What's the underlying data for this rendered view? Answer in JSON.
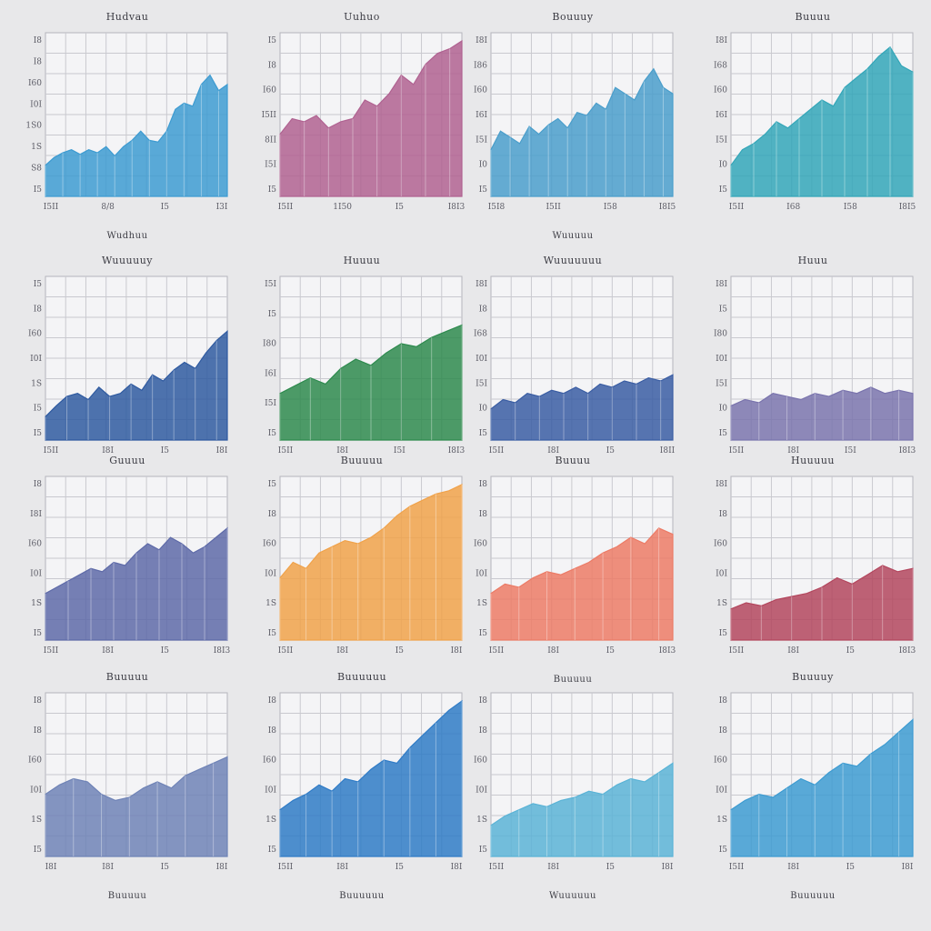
{
  "page": {
    "background": "#e8e8ea",
    "grid_color": "#c9c9cf",
    "frame_color": "#b5b5bc"
  },
  "chart_data": [
    {
      "type": "area",
      "title": "Hudvau",
      "footer": "Wudhuu",
      "color": "#3d9bd1",
      "yticks": [
        "I8",
        "I8",
        "I60",
        "I0I",
        "1S0",
        "1S",
        "S8",
        "I5"
      ],
      "xticks": [
        "I5II",
        "8/8",
        "I5",
        "I3I"
      ],
      "values": [
        0.2,
        0.25,
        0.28,
        0.3,
        0.27,
        0.3,
        0.28,
        0.32,
        0.26,
        0.32,
        0.36,
        0.42,
        0.36,
        0.35,
        0.42,
        0.56,
        0.6,
        0.58,
        0.72,
        0.78,
        0.68,
        0.72
      ]
    },
    {
      "type": "area",
      "title": "Uuhuo",
      "footer": "",
      "color": "#b06291",
      "yticks": [
        "I5",
        "I8",
        "I60",
        "I5II",
        "8II",
        "I5I",
        "I5"
      ],
      "xticks": [
        "I5II",
        "1I50",
        "I5",
        "I8I3"
      ],
      "values": [
        0.4,
        0.5,
        0.48,
        0.52,
        0.44,
        0.48,
        0.5,
        0.62,
        0.58,
        0.66,
        0.78,
        0.72,
        0.85,
        0.92,
        0.95,
        1.0
      ]
    },
    {
      "type": "area",
      "title": "Bouuuy",
      "footer": "Wuuuuu",
      "color": "#4a9ecb",
      "yticks": [
        "I8I",
        "I86",
        "I60",
        "I6I",
        "I5I",
        "I0",
        "I5"
      ],
      "xticks": [
        "I5I8",
        "I5II",
        "I58",
        "I8I5"
      ],
      "values": [
        0.3,
        0.42,
        0.38,
        0.34,
        0.45,
        0.4,
        0.46,
        0.5,
        0.44,
        0.54,
        0.52,
        0.6,
        0.56,
        0.7,
        0.66,
        0.62,
        0.74,
        0.82,
        0.7,
        0.66
      ]
    },
    {
      "type": "area",
      "title": "Buuuu",
      "footer": "",
      "color": "#33a6b8",
      "yticks": [
        "I8I",
        "I68",
        "I60",
        "I6I",
        "I5I",
        "I0",
        "I5"
      ],
      "xticks": [
        "I5II",
        "I68",
        "I58",
        "I8I5"
      ],
      "values": [
        0.2,
        0.3,
        0.34,
        0.4,
        0.48,
        0.44,
        0.5,
        0.56,
        0.62,
        0.58,
        0.7,
        0.76,
        0.82,
        0.9,
        0.96,
        0.84,
        0.8
      ]
    },
    {
      "type": "area",
      "title": "Wuuuuuy",
      "footer": "",
      "color": "#2f5aa0",
      "yticks": [
        "I5",
        "I8",
        "I60",
        "I0I",
        "1S",
        "I5",
        "I5"
      ],
      "xticks": [
        "I5II",
        "I8I",
        "I5",
        "I8I"
      ],
      "values": [
        0.15,
        0.22,
        0.28,
        0.3,
        0.26,
        0.34,
        0.28,
        0.3,
        0.36,
        0.32,
        0.42,
        0.38,
        0.45,
        0.5,
        0.46,
        0.56,
        0.64,
        0.7
      ]
    },
    {
      "type": "area",
      "title": "Huuuu",
      "footer": "",
      "color": "#2e8a4e",
      "yticks": [
        "I5I",
        "I5",
        "I80",
        "I6I",
        "I5I",
        "I5"
      ],
      "xticks": [
        "I5II",
        "I8I",
        "I5I",
        "I8I3"
      ],
      "values": [
        0.3,
        0.35,
        0.4,
        0.36,
        0.46,
        0.52,
        0.48,
        0.56,
        0.62,
        0.6,
        0.66,
        0.7,
        0.74
      ]
    },
    {
      "type": "area",
      "title": "Wuuuuuuu",
      "footer": "",
      "color": "#3a5da3",
      "yticks": [
        "I8I",
        "I8",
        "I68",
        "I0I",
        "I5I",
        "I0",
        "I5"
      ],
      "xticks": [
        "I5II",
        "I8I",
        "I5",
        "I8II"
      ],
      "values": [
        0.2,
        0.26,
        0.24,
        0.3,
        0.28,
        0.32,
        0.3,
        0.34,
        0.3,
        0.36,
        0.34,
        0.38,
        0.36,
        0.4,
        0.38,
        0.42
      ]
    },
    {
      "type": "area",
      "title": "Huuu",
      "footer": "",
      "color": "#7a74ad",
      "yticks": [
        "I8I",
        "I5",
        "I80",
        "I0I",
        "I5I",
        "I0",
        "I5"
      ],
      "xticks": [
        "I5II",
        "I8I",
        "I5I",
        "I8I3"
      ],
      "values": [
        0.22,
        0.26,
        0.24,
        0.3,
        0.28,
        0.26,
        0.3,
        0.28,
        0.32,
        0.3,
        0.34,
        0.3,
        0.32,
        0.3
      ]
    },
    {
      "type": "area",
      "title": "Guuuu",
      "footer": "",
      "color": "#5e6aa8",
      "yticks": [
        "I8",
        "I8I",
        "I60",
        "I0I",
        "1S",
        "I5"
      ],
      "xticks": [
        "I5II",
        "I8I",
        "I5",
        "I8I3"
      ],
      "values": [
        0.3,
        0.34,
        0.38,
        0.42,
        0.46,
        0.44,
        0.5,
        0.48,
        0.56,
        0.62,
        0.58,
        0.66,
        0.62,
        0.56,
        0.6,
        0.66,
        0.72
      ]
    },
    {
      "type": "area",
      "title": "Buuuuu",
      "footer": "",
      "color": "#f0a24a",
      "yticks": [
        "I5",
        "I8",
        "I60",
        "I0I",
        "1S",
        "I5"
      ],
      "xticks": [
        "I5II",
        "I8I",
        "I5",
        "I8I"
      ],
      "values": [
        0.4,
        0.5,
        0.46,
        0.56,
        0.6,
        0.64,
        0.62,
        0.66,
        0.72,
        0.8,
        0.86,
        0.9,
        0.94,
        0.96,
        1.0
      ]
    },
    {
      "type": "area",
      "title": "Buuuu",
      "footer": "Buuuuu",
      "color": "#ec7b66",
      "yticks": [
        "I8",
        "I8",
        "I60",
        "I0I",
        "1S",
        "I5"
      ],
      "xticks": [
        "I5II",
        "I8I",
        "I5",
        "I8I3"
      ],
      "values": [
        0.3,
        0.36,
        0.34,
        0.4,
        0.44,
        0.42,
        0.46,
        0.5,
        0.56,
        0.6,
        0.66,
        0.62,
        0.72,
        0.68
      ]
    },
    {
      "type": "area",
      "title": "Huuuuu",
      "footer": "",
      "color": "#b3475e",
      "yticks": [
        "I8I",
        "I8",
        "I60",
        "I0I",
        "1S",
        "I5"
      ],
      "xticks": [
        "I5II",
        "I8I",
        "I5",
        "I8I3"
      ],
      "values": [
        0.2,
        0.24,
        0.22,
        0.26,
        0.28,
        0.3,
        0.34,
        0.4,
        0.36,
        0.42,
        0.48,
        0.44,
        0.46
      ]
    },
    {
      "type": "area",
      "title": "Buuuuu",
      "footer": "Buuuuu",
      "color": "#6f83b6",
      "yticks": [
        "I8",
        "I8",
        "I60",
        "I0I",
        "1S",
        "I5"
      ],
      "xticks": [
        "I8I",
        "I8I",
        "I5",
        "I8I"
      ],
      "values": [
        0.4,
        0.46,
        0.5,
        0.48,
        0.4,
        0.36,
        0.38,
        0.44,
        0.48,
        0.44,
        0.52,
        0.56,
        0.6,
        0.64
      ]
    },
    {
      "type": "area",
      "title": "Buuuuuu",
      "footer": "Buuuuuu",
      "color": "#2f7bc6",
      "yticks": [
        "I8",
        "I8",
        "I60",
        "I0I",
        "1S",
        "I5"
      ],
      "xticks": [
        "I5II",
        "I8I",
        "I5",
        "I8I"
      ],
      "values": [
        0.3,
        0.36,
        0.4,
        0.46,
        0.42,
        0.5,
        0.48,
        0.56,
        0.62,
        0.6,
        0.7,
        0.78,
        0.86,
        0.94,
        1.0
      ]
    },
    {
      "type": "area",
      "title": "",
      "footer": "Wuuuuuu",
      "color": "#5ab3d6",
      "yticks": [
        "I8",
        "I8",
        "I60",
        "I0I",
        "1S",
        "I5"
      ],
      "xticks": [
        "I5II",
        "I8I",
        "I5",
        "I8I"
      ],
      "values": [
        0.2,
        0.26,
        0.3,
        0.34,
        0.32,
        0.36,
        0.38,
        0.42,
        0.4,
        0.46,
        0.5,
        0.48,
        0.54,
        0.6
      ]
    },
    {
      "type": "area",
      "title": "Buuuuy",
      "footer": "Buuuuuu",
      "color": "#3d9bd1",
      "yticks": [
        "I8",
        "I8",
        "I60",
        "I0I",
        "1S",
        "I5"
      ],
      "xticks": [
        "I5II",
        "I8I",
        "I5",
        "I8I"
      ],
      "values": [
        0.3,
        0.36,
        0.4,
        0.38,
        0.44,
        0.5,
        0.46,
        0.54,
        0.6,
        0.58,
        0.66,
        0.72,
        0.8,
        0.88
      ]
    }
  ]
}
